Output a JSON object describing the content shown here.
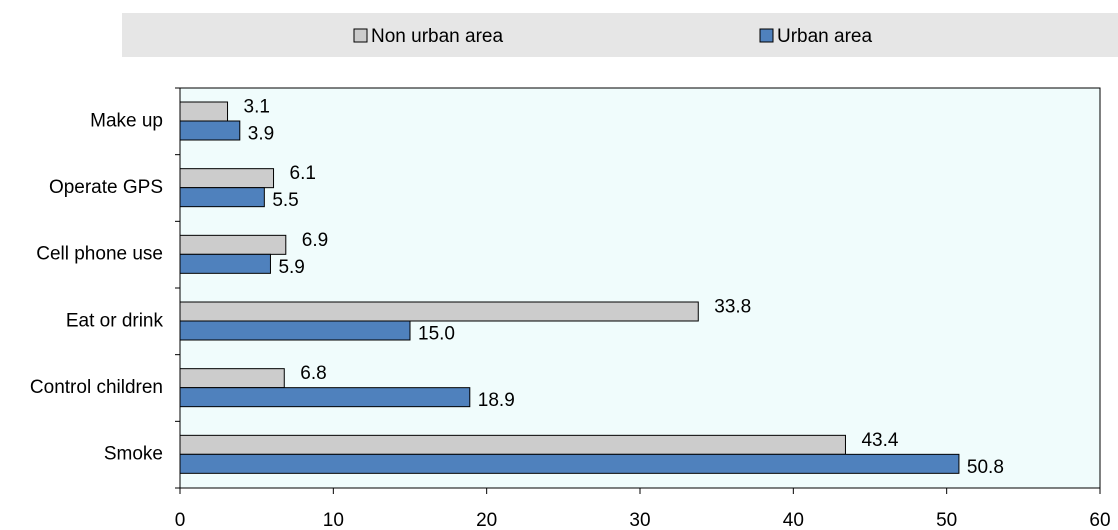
{
  "chart_data": {
    "type": "hbar",
    "categories": [
      "Make up",
      "Operate GPS",
      "Cell phone use",
      "Eat or drink",
      "Control children",
      "Smoke"
    ],
    "series": [
      {
        "name": "Non urban area",
        "color": "#cccccc",
        "values": [
          3.1,
          6.1,
          6.9,
          33.8,
          6.8,
          43.4
        ],
        "value_labels": [
          "3.1",
          "6.1",
          "6.9",
          "33.8",
          "6.8",
          "43.4"
        ]
      },
      {
        "name": "Urban area",
        "color": "#4f81bd",
        "values": [
          3.9,
          5.5,
          5.9,
          15.0,
          18.9,
          50.8
        ],
        "value_labels": [
          "3.9",
          "5.5",
          "5.9",
          "15.0",
          "18.9",
          "50.8"
        ]
      }
    ],
    "xlim": [
      0,
      60
    ],
    "xticks": [
      0,
      10,
      20,
      30,
      40,
      50,
      60
    ]
  }
}
